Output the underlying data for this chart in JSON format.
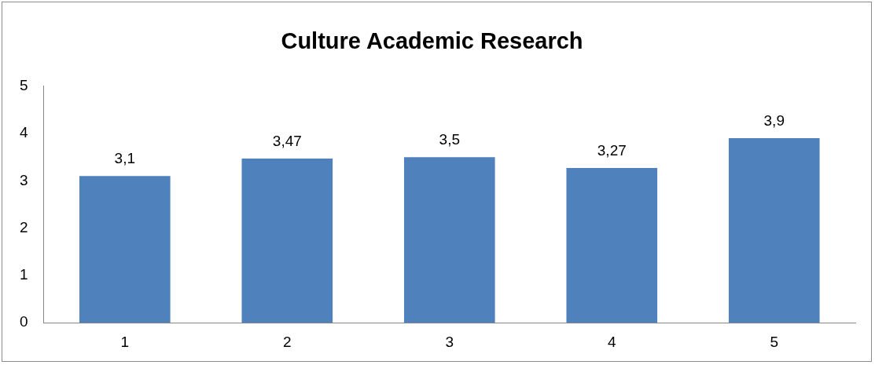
{
  "chart_data": {
    "type": "bar",
    "title": "Culture Academic Research",
    "categories": [
      "1",
      "2",
      "3",
      "4",
      "5"
    ],
    "values": [
      3.1,
      3.47,
      3.5,
      3.27,
      3.9
    ],
    "value_labels": [
      "3,1",
      "3,47",
      "3,5",
      "3,27",
      "3,9"
    ],
    "color": "#4f81bd",
    "ylim": [
      0,
      5
    ],
    "yticks": [
      0,
      1,
      2,
      3,
      4,
      5
    ],
    "grid": false,
    "legend": false
  }
}
